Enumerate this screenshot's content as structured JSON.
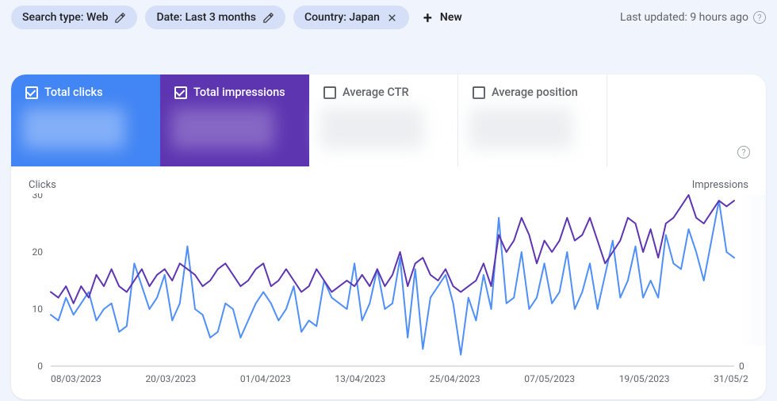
{
  "topbar": {
    "chips": [
      {
        "label": "Search type: Web",
        "icon": "pencil"
      },
      {
        "label": "Date: Last 3 months",
        "icon": "pencil"
      },
      {
        "label": "Country: Japan",
        "icon": "close"
      }
    ],
    "new_label": "New",
    "updated_label": "Last updated: 9 hours ago"
  },
  "tabs": {
    "clicks": {
      "label": "Total clicks",
      "checked": true,
      "color": "#4285f4"
    },
    "impressions": {
      "label": "Total impressions",
      "checked": true,
      "color": "#5e35b1"
    },
    "ctr": {
      "label": "Average CTR",
      "checked": false,
      "color": "#00897b"
    },
    "position": {
      "label": "Average position",
      "checked": false,
      "color": "#e8710a"
    }
  },
  "chart": {
    "left_axis_title": "Clicks",
    "right_axis_title": "Impressions",
    "left_ticks": [
      0,
      10,
      20,
      30
    ],
    "right_tick": 0,
    "x_labels": [
      "08/03/2023",
      "20/03/2023",
      "01/04/2023",
      "13/04/2023",
      "25/04/2023",
      "07/05/2023",
      "19/05/2023",
      "31/05/2023"
    ],
    "n_points": 91,
    "clicks_color": "#4f8ff7",
    "impressions_color": "#5e35b1",
    "line_width": 2,
    "ymax": 30,
    "grid_color": "#dadce0",
    "background_color": "#ffffff",
    "clicks": [
      9,
      8,
      12,
      9,
      11,
      13,
      8,
      10,
      11,
      6,
      7,
      18,
      14,
      10,
      12,
      16,
      8,
      11,
      21,
      10,
      9,
      5,
      6,
      11,
      10,
      5,
      8,
      11,
      13,
      11,
      8,
      10,
      14,
      6,
      8,
      7,
      15,
      12,
      11,
      10,
      18,
      8,
      11,
      17,
      10,
      11,
      19,
      5,
      17,
      3,
      12,
      14,
      16,
      11,
      2,
      12,
      8,
      16,
      10,
      26,
      11,
      12,
      20,
      10,
      12,
      18,
      11,
      13,
      20,
      10,
      13,
      18,
      10,
      16,
      22,
      12,
      15,
      21,
      12,
      15,
      12,
      23,
      18,
      17,
      24,
      20,
      15,
      22,
      29,
      20,
      19
    ],
    "impressions": [
      13,
      12,
      14,
      11,
      14,
      12,
      16,
      14,
      17,
      14,
      13,
      15,
      17,
      14,
      16,
      17,
      15,
      18,
      17,
      16,
      14,
      15,
      17,
      18,
      16,
      14,
      15,
      17,
      18,
      14,
      15,
      17,
      15,
      13,
      14,
      17,
      15,
      13,
      14,
      15,
      14,
      16,
      14,
      17,
      14,
      16,
      20,
      14,
      18,
      19,
      16,
      15,
      17,
      14,
      13,
      14,
      15,
      18,
      14,
      23,
      20,
      22,
      26,
      23,
      18,
      22,
      20,
      22,
      26,
      22,
      23,
      26,
      22,
      18,
      20,
      22,
      26,
      25,
      20,
      24,
      19,
      25,
      26,
      28,
      30,
      26,
      25,
      27,
      29,
      28,
      29
    ]
  }
}
